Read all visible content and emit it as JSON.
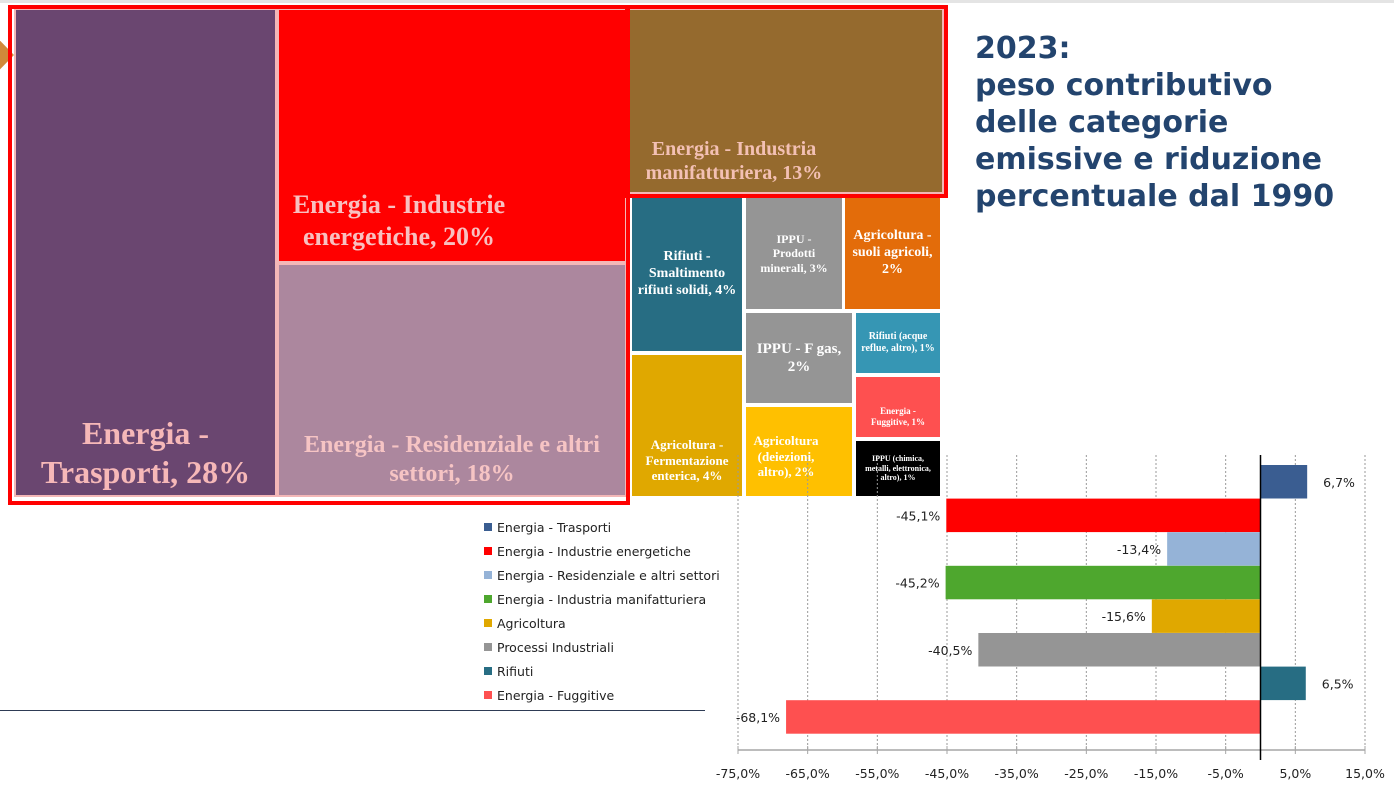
{
  "title": {
    "lines": [
      "2023:",
      "peso contributivo",
      "delle categorie",
      "emissive e riduzione",
      "percentuale dal 1990"
    ]
  },
  "treemap": {
    "cells": [
      {
        "label": "Energia - Trasporti, 28%",
        "share_pct": 28,
        "color": "#6a4670",
        "text_color": "#f6b8b8"
      },
      {
        "label": "Energia - Industrie energetiche, 20%",
        "share_pct": 20,
        "color": "#ff0000",
        "text_color": "#f8c0c0"
      },
      {
        "label": "Energia - Residenziale e altri settori, 18%",
        "share_pct": 18,
        "color": "#ac879e",
        "text_color": "#f6c4c4"
      },
      {
        "label": "Energia - Industria manifatturiera, 13%",
        "share_pct": 13,
        "color": "#956a2e",
        "text_color": "#f3c0b4"
      },
      {
        "label": "Rifiuti - Smaltimento rifiuti solidi, 4%",
        "share_pct": 4,
        "color": "#276d83",
        "text_color": "#ffffff"
      },
      {
        "label": "IPPU - Prodotti minerali, 3%",
        "share_pct": 3,
        "color": "#959595",
        "text_color": "#ffffff"
      },
      {
        "label": "Agricoltura - suoli agricoli, 2%",
        "share_pct": 2,
        "color": "#e36c0a",
        "text_color": "#ffffff"
      },
      {
        "label": "IPPU - F gas, 2%",
        "share_pct": 2,
        "color": "#959595",
        "text_color": "#ffffff"
      },
      {
        "label": "Rifiuti (acque reflue, altro), 1%",
        "share_pct": 1,
        "color": "#3696b4",
        "text_color": "#ffffff"
      },
      {
        "label": "Energia - Fuggitive, 1%",
        "share_pct": 1,
        "color": "#fe5050",
        "text_color": "#ffffff"
      },
      {
        "label": "Agricoltura - Fermentazione enterica, 4%",
        "share_pct": 4,
        "color": "#e0a800",
        "text_color": "#ffffff"
      },
      {
        "label": "Agricoltura (deiezioni, altro), 2%",
        "share_pct": 2,
        "color": "#ffc000",
        "text_color": "#ffffff"
      },
      {
        "label": "IPPU (chimica, metalli, elettronica, altro), 1%",
        "share_pct": 1,
        "color": "#000000",
        "text_color": "#ffffff"
      }
    ]
  },
  "chart_data": [
    {
      "type": "treemap",
      "title": "",
      "items": [
        {
          "name": "Energia - Trasporti",
          "value": 28
        },
        {
          "name": "Energia - Industrie energetiche",
          "value": 20
        },
        {
          "name": "Energia - Residenziale e altri settori",
          "value": 18
        },
        {
          "name": "Energia - Industria manifatturiera",
          "value": 13
        },
        {
          "name": "Rifiuti - Smaltimento rifiuti solidi",
          "value": 4
        },
        {
          "name": "Agricoltura - Fermentazione enterica",
          "value": 4
        },
        {
          "name": "IPPU - Prodotti minerali",
          "value": 3
        },
        {
          "name": "Agricoltura - suoli agricoli",
          "value": 2
        },
        {
          "name": "IPPU - F gas",
          "value": 2
        },
        {
          "name": "Agricoltura (deiezioni, altro)",
          "value": 2
        },
        {
          "name": "Rifiuti (acque reflue, altro)",
          "value": 1
        },
        {
          "name": "Energia - Fuggitive",
          "value": 1
        },
        {
          "name": "IPPU (chimica, metalli, elettronica, altro)",
          "value": 1
        }
      ]
    },
    {
      "type": "bar",
      "orientation": "horizontal",
      "title": "",
      "xlabel": "",
      "ylabel": "",
      "xlim": [
        -75,
        15
      ],
      "xticks": [
        -75,
        -65,
        -55,
        -45,
        -35,
        -25,
        -15,
        -5,
        5,
        15
      ],
      "xtick_labels": [
        "-75,0%",
        "-65,0%",
        "-55,0%",
        "-45,0%",
        "-35,0%",
        "-25,0%",
        "-15,0%",
        "-5,0%",
        "5,0%",
        "15,0%"
      ],
      "grid": "vertical dotted",
      "legend_position": "left",
      "series": [
        {
          "name": "Energia - Trasporti",
          "value": 6.7,
          "label": "6,7%",
          "color": "#3a5d91"
        },
        {
          "name": "Energia - Industrie energetiche",
          "value": -45.1,
          "label": "-45,1%",
          "color": "#ff0000"
        },
        {
          "name": "Energia - Residenziale e altri settori",
          "value": -13.4,
          "label": "-13,4%",
          "color": "#95b3d7"
        },
        {
          "name": "Energia - Industria manifatturiera",
          "value": -45.2,
          "label": "-45,2%",
          "color": "#4ea72e"
        },
        {
          "name": "Agricoltura",
          "value": -15.6,
          "label": "-15,6%",
          "color": "#e0a800"
        },
        {
          "name": "Processi Industriali",
          "value": -40.5,
          "label": "-40,5%",
          "color": "#959595"
        },
        {
          "name": "Rifiuti",
          "value": 6.5,
          "label": "6,5%",
          "color": "#276d83"
        },
        {
          "name": "Energia - Fuggitive",
          "value": -68.1,
          "label": "-68,1%",
          "color": "#fe5050"
        }
      ]
    }
  ]
}
